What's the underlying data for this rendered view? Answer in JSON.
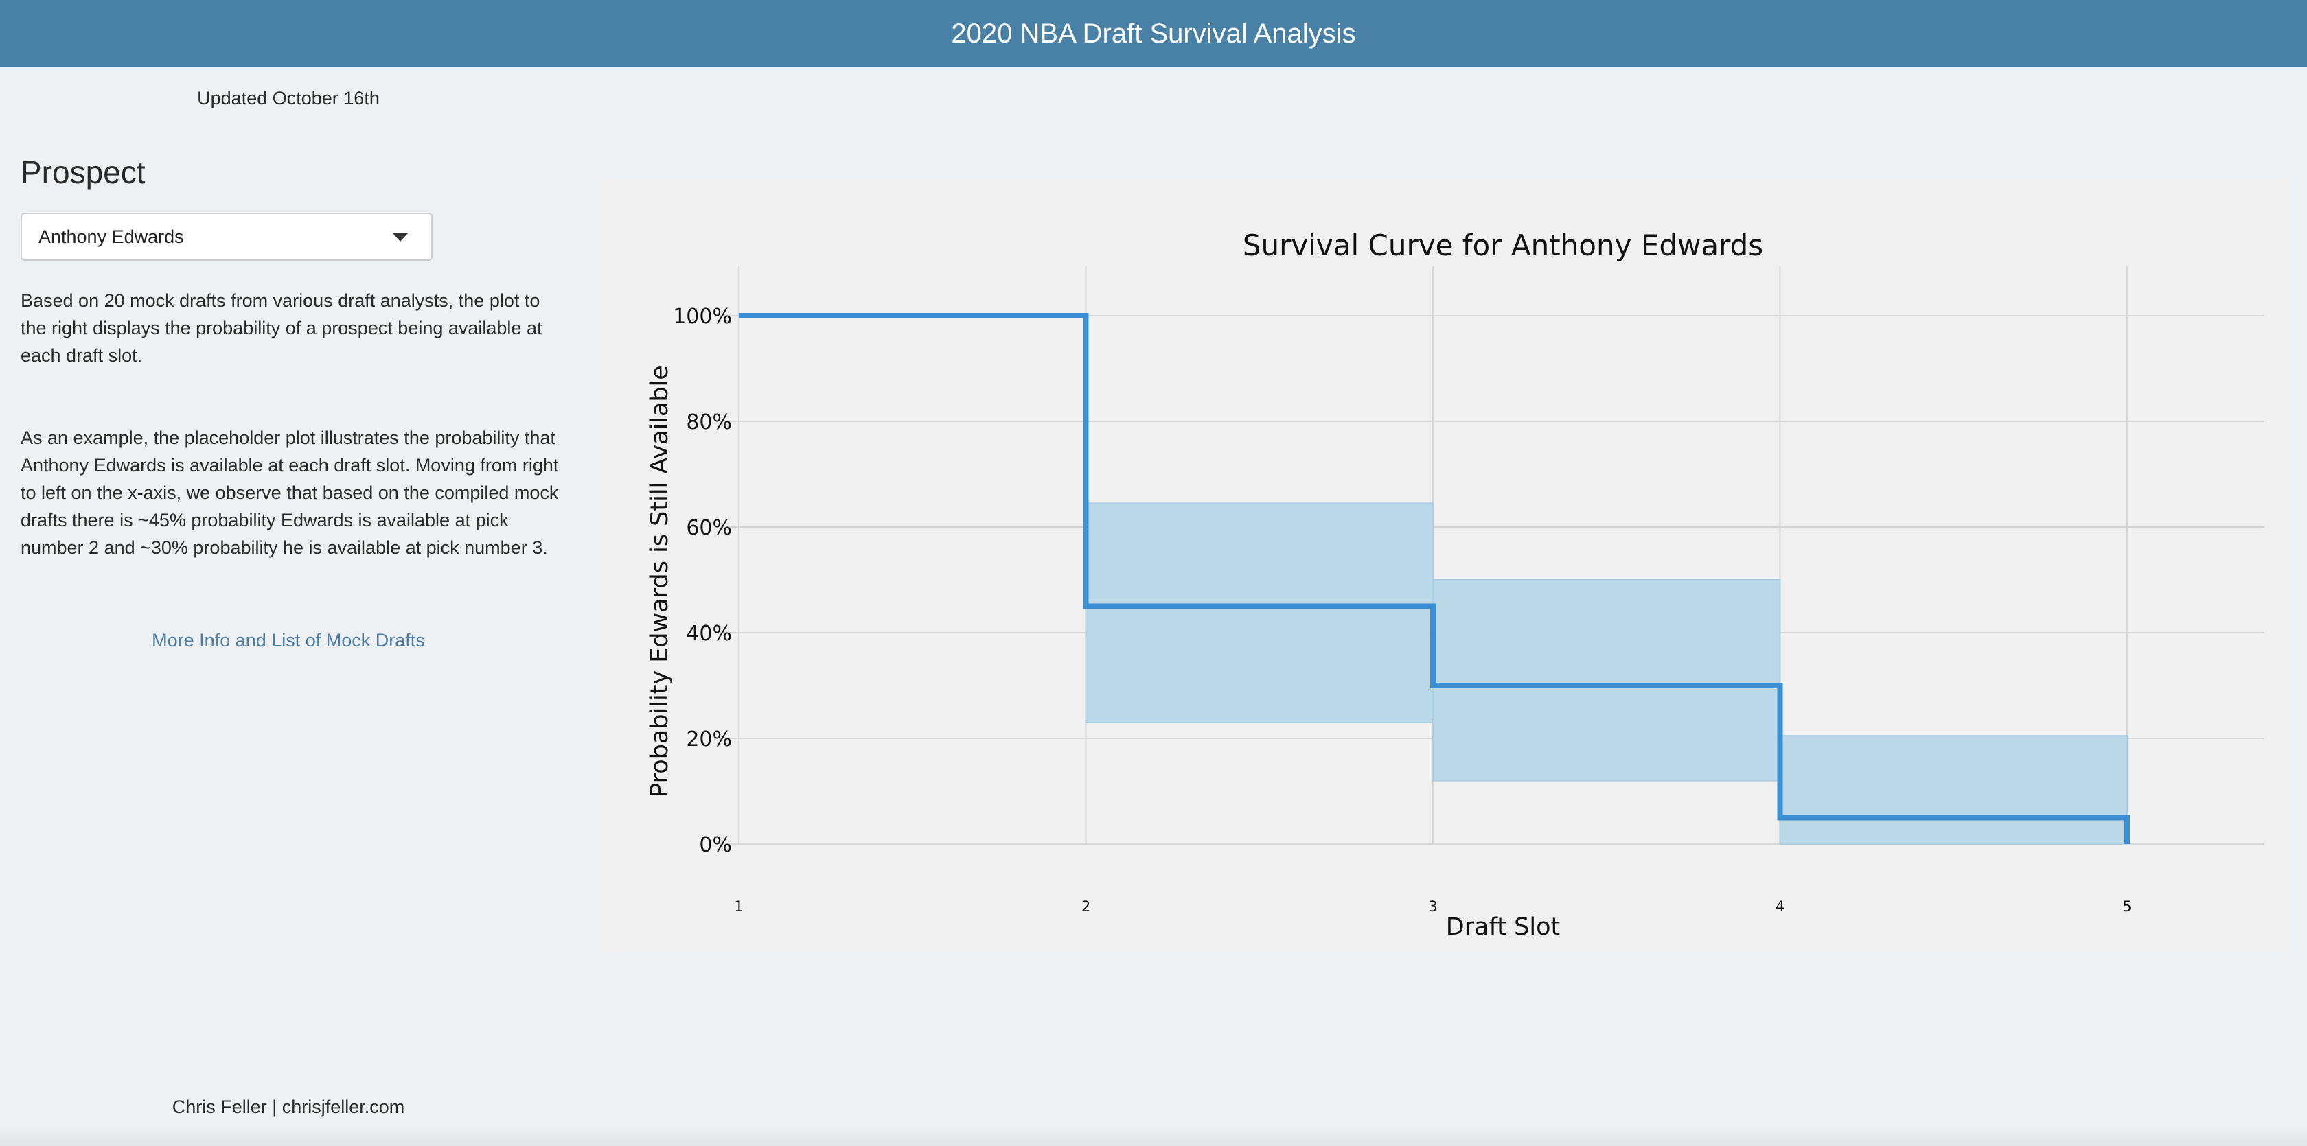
{
  "header": {
    "title": "2020 NBA Draft Survival Analysis"
  },
  "sidebar": {
    "updated": "Updated October 16th",
    "prospect_label": "Prospect",
    "selected_prospect": "Anthony Edwards",
    "paragraph1": "Based on 20 mock drafts from various draft analysts, the plot to the right displays the probability of a prospect being available at each draft slot.",
    "paragraph2": "As an example, the placeholder plot illustrates the probability that Anthony Edwards is available at each draft slot. Moving from right to left on the x-axis, we observe that based on the compiled mock drafts there is ~45% probability Edwards is available at pick number 2 and ~30% probability he is available at pick number 3.",
    "more_link": "More Info and List of Mock Drafts"
  },
  "footer": {
    "credit": "Chris Feller | chrisjfeller.com"
  },
  "colors": {
    "header_bg": "#4880a6",
    "line": "#3a8fd4",
    "band": "#b9d7e8",
    "link": "#4a7ca6"
  },
  "chart_data": {
    "type": "line",
    "step": true,
    "title": "Survival Curve for Anthony Edwards",
    "xlabel": "Draft Slot",
    "ylabel": "Probability Edwards is Still Available",
    "xlim": [
      1,
      5
    ],
    "ylim": [
      0,
      1
    ],
    "x_ticks": [
      1,
      2,
      3,
      4,
      5
    ],
    "x_tick_labels": [
      "1",
      "2",
      "3",
      "4",
      "5"
    ],
    "y_ticks": [
      0,
      0.2,
      0.4,
      0.6,
      0.8,
      1.0
    ],
    "y_tick_labels": [
      "0%",
      "20%",
      "40%",
      "60%",
      "80%",
      "100%"
    ],
    "grid": true,
    "survival": [
      {
        "from": 1,
        "to": 2,
        "estimate": 1.0
      },
      {
        "from": 2,
        "to": 3,
        "estimate": 0.45,
        "lower": 0.23,
        "upper": 0.645
      },
      {
        "from": 3,
        "to": 4,
        "estimate": 0.3,
        "lower": 0.12,
        "upper": 0.5
      },
      {
        "from": 4,
        "to": 5,
        "estimate": 0.05,
        "lower": 0.0,
        "upper": 0.205
      }
    ],
    "end_value": 0.0
  }
}
